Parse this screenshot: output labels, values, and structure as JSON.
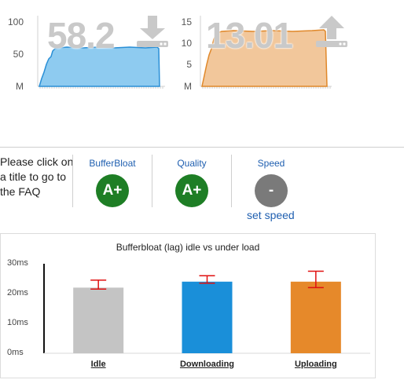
{
  "speed_charts": {
    "download": {
      "value": "58.2",
      "direction_icon": "download-arrow-icon",
      "y_ticks": [
        "100",
        "50",
        "M"
      ],
      "fill": "#8ecbf0",
      "stroke": "#2a8fd6"
    },
    "upload": {
      "value": "13.01",
      "direction_icon": "upload-arrow-icon",
      "y_ticks": [
        "15",
        "10",
        "5",
        "M"
      ],
      "fill": "#f2c79b",
      "stroke": "#e0882a"
    }
  },
  "grades": {
    "faq_text": [
      "Please click on",
      "a title to go to",
      "the FAQ"
    ],
    "bufferbloat": {
      "label": "BufferBloat",
      "grade": "A+",
      "color": "#1e7e25"
    },
    "quality": {
      "label": "Quality",
      "grade": "A+",
      "color": "#1e7e25"
    },
    "speed": {
      "label": "Speed",
      "grade": "-",
      "color": "#7a7a7a",
      "link": "set speed"
    }
  },
  "chart_data": {
    "type": "bar",
    "title": "Bufferbloat (lag) idle vs under load",
    "categories": [
      "Idle",
      "Downloading",
      "Uploading"
    ],
    "values": [
      22,
      24,
      24
    ],
    "error_low": [
      21.5,
      23.5,
      22
    ],
    "error_high": [
      24.5,
      26,
      27.5
    ],
    "colors": [
      "#c4c4c4",
      "#1a8fd9",
      "#e6892a"
    ],
    "ylim": [
      0,
      30
    ],
    "y_ticks": [
      "0ms",
      "10ms",
      "20ms",
      "30ms"
    ],
    "grid": false
  }
}
